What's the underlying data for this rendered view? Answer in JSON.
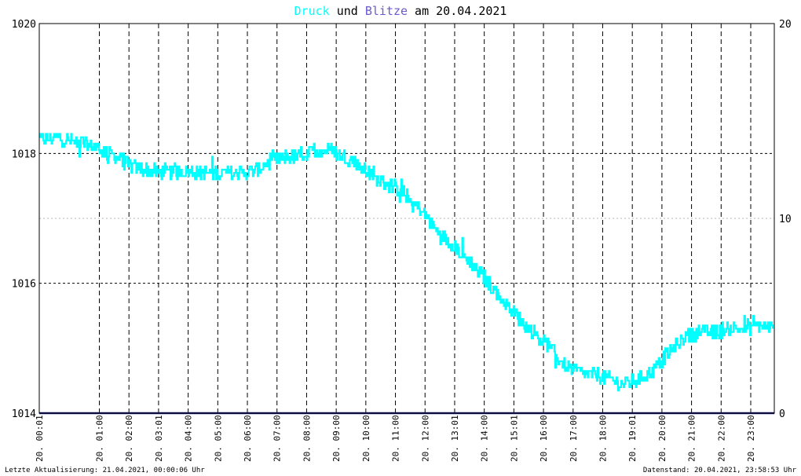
{
  "chart_data": {
    "type": "line",
    "title": {
      "part_druck": "Druck",
      "part_und": " und ",
      "part_blitze": "Blitze",
      "part_date": " am 20.04.2021"
    },
    "colors": {
      "druck": "#00ffff",
      "blitze": "#6a5acd",
      "blitze_line": "#1a1a7a",
      "text": "#000000",
      "grid": "#000000",
      "grid_minor": "#b4b4b4"
    },
    "y_left": {
      "min": 1014,
      "max": 1020,
      "ticks": [
        "1020",
        "1018",
        "1016",
        "1014"
      ]
    },
    "y_right": {
      "min": 0,
      "max": 20,
      "ticks": [
        "20",
        "10",
        "0"
      ]
    },
    "x_ticks": [
      "20. 00:01",
      "20. 01:00",
      "20. 02:00",
      "20. 03:01",
      "20. 04:00",
      "20. 05:00",
      "20. 06:00",
      "20. 07:00",
      "20. 08:00",
      "20. 09:00",
      "20. 10:00",
      "20. 11:00",
      "20. 12:00",
      "20. 13:01",
      "20. 14:00",
      "20. 15:01",
      "20. 16:00",
      "20. 17:00",
      "20. 18:00",
      "20. 19:01",
      "20. 20:00",
      "20. 21:00",
      "20. 22:00",
      "20. 23:00"
    ],
    "x_range_hours": [
      0,
      24
    ],
    "series": [
      {
        "name": "Druck",
        "axis": "left",
        "x_hours": [
          0.0,
          0.5,
          1.0,
          1.5,
          2.0,
          2.5,
          3.0,
          3.5,
          4.0,
          4.5,
          5.0,
          5.5,
          6.0,
          6.5,
          7.0,
          7.5,
          8.0,
          8.5,
          9.0,
          9.5,
          10.0,
          10.5,
          11.0,
          11.5,
          12.0,
          12.5,
          13.0,
          13.5,
          14.0,
          14.5,
          15.0,
          15.5,
          16.0,
          16.5,
          17.0,
          17.5,
          18.0,
          18.5,
          19.0,
          19.5,
          20.0,
          20.5,
          21.0,
          21.5,
          22.0,
          22.5,
          23.0,
          23.5,
          23.95
        ],
        "values": [
          1018.2,
          1018.25,
          1018.2,
          1018.15,
          1018.05,
          1017.95,
          1017.8,
          1017.75,
          1017.7,
          1017.72,
          1017.72,
          1017.7,
          1017.7,
          1017.7,
          1017.72,
          1017.85,
          1017.95,
          1017.95,
          1018.05,
          1018.05,
          1017.95,
          1017.8,
          1017.6,
          1017.5,
          1017.35,
          1017.1,
          1016.8,
          1016.6,
          1016.35,
          1016.1,
          1015.8,
          1015.55,
          1015.3,
          1015.1,
          1014.8,
          1014.65,
          1014.6,
          1014.55,
          1014.45,
          1014.5,
          1014.65,
          1014.9,
          1015.15,
          1015.25,
          1015.25,
          1015.3,
          1015.3,
          1015.35,
          1015.3
        ]
      },
      {
        "name": "Blitze",
        "axis": "right",
        "x_hours": [
          0,
          24
        ],
        "values": [
          0,
          0
        ]
      }
    ],
    "grid": true,
    "legend": "title"
  },
  "footer": {
    "left": "Letzte Aktualisierung: 21.04.2021, 00:00:06 Uhr",
    "right": "Datenstand: 20.04.2021, 23:58:53 Uhr"
  }
}
